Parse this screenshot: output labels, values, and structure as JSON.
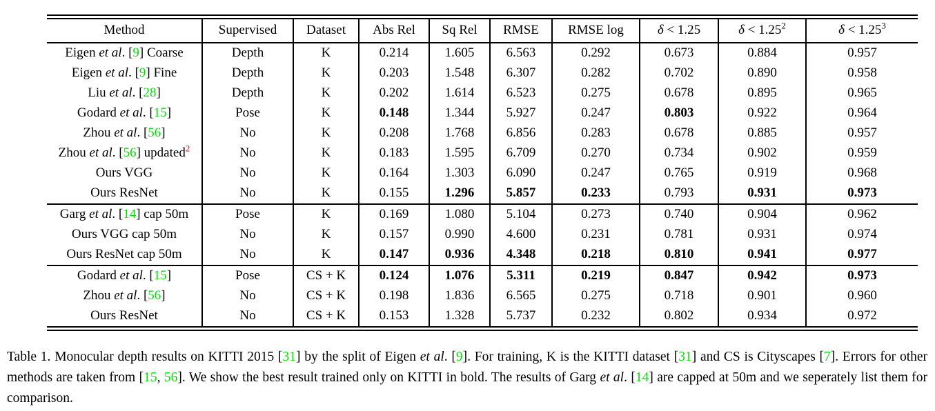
{
  "colors": {
    "citation_green": "#00e300",
    "footnote_red": "#fd0000",
    "text": "#000000"
  },
  "table": {
    "headers": [
      {
        "segs": [
          {
            "t": "Method"
          }
        ]
      },
      {
        "segs": [
          {
            "t": "Supervised"
          }
        ]
      },
      {
        "segs": [
          {
            "t": "Dataset"
          }
        ]
      },
      {
        "segs": [
          {
            "t": "Abs Rel"
          }
        ]
      },
      {
        "segs": [
          {
            "t": "Sq Rel"
          }
        ]
      },
      {
        "segs": [
          {
            "t": "RMSE"
          }
        ]
      },
      {
        "segs": [
          {
            "t": "RMSE log"
          }
        ]
      },
      {
        "segs": [
          {
            "t": "δ",
            "i": 1
          },
          {
            "t": " < 1.25"
          }
        ]
      },
      {
        "segs": [
          {
            "t": "δ",
            "i": 1
          },
          {
            "t": " < 1.25"
          },
          {
            "t": "2",
            "sup": 1
          }
        ]
      },
      {
        "segs": [
          {
            "t": "δ",
            "i": 1
          },
          {
            "t": " < 1.25"
          },
          {
            "t": "3",
            "sup": 1
          }
        ]
      }
    ],
    "sections": [
      {
        "rows": [
          {
            "method": [
              {
                "t": "Eigen "
              },
              {
                "t": "et al",
                "i": 1
              },
              {
                "t": ". ["
              },
              {
                "t": "9",
                "g": 1
              },
              {
                "t": "] Coarse"
              }
            ],
            "supervised": "Depth",
            "dataset": "K",
            "values": [
              {
                "v": "0.214"
              },
              {
                "v": "1.605"
              },
              {
                "v": "6.563"
              },
              {
                "v": "0.292"
              },
              {
                "v": "0.673"
              },
              {
                "v": "0.884"
              },
              {
                "v": "0.957"
              }
            ]
          },
          {
            "method": [
              {
                "t": "Eigen "
              },
              {
                "t": "et al",
                "i": 1
              },
              {
                "t": ". ["
              },
              {
                "t": "9",
                "g": 1
              },
              {
                "t": "] Fine"
              }
            ],
            "supervised": "Depth",
            "dataset": "K",
            "values": [
              {
                "v": "0.203"
              },
              {
                "v": "1.548"
              },
              {
                "v": "6.307"
              },
              {
                "v": "0.282"
              },
              {
                "v": "0.702"
              },
              {
                "v": "0.890"
              },
              {
                "v": "0.958"
              }
            ]
          },
          {
            "method": [
              {
                "t": "Liu "
              },
              {
                "t": "et al",
                "i": 1
              },
              {
                "t": ". ["
              },
              {
                "t": "28",
                "g": 1
              },
              {
                "t": "]"
              }
            ],
            "supervised": "Depth",
            "dataset": "K",
            "values": [
              {
                "v": "0.202"
              },
              {
                "v": "1.614"
              },
              {
                "v": "6.523"
              },
              {
                "v": "0.275"
              },
              {
                "v": "0.678"
              },
              {
                "v": "0.895"
              },
              {
                "v": "0.965"
              }
            ]
          },
          {
            "method": [
              {
                "t": "Godard "
              },
              {
                "t": "et al",
                "i": 1
              },
              {
                "t": ". ["
              },
              {
                "t": "15",
                "g": 1
              },
              {
                "t": "]"
              }
            ],
            "supervised": "Pose",
            "dataset": "K",
            "values": [
              {
                "v": "0.148",
                "b": 1
              },
              {
                "v": "1.344"
              },
              {
                "v": "5.927"
              },
              {
                "v": "0.247"
              },
              {
                "v": "0.803",
                "b": 1
              },
              {
                "v": "0.922"
              },
              {
                "v": "0.964"
              }
            ]
          },
          {
            "method": [
              {
                "t": "Zhou "
              },
              {
                "t": "et al",
                "i": 1
              },
              {
                "t": ". ["
              },
              {
                "t": "56",
                "g": 1
              },
              {
                "t": "]"
              }
            ],
            "supervised": "No",
            "dataset": "K",
            "values": [
              {
                "v": "0.208"
              },
              {
                "v": "1.768"
              },
              {
                "v": "6.856"
              },
              {
                "v": "0.283"
              },
              {
                "v": "0.678"
              },
              {
                "v": "0.885"
              },
              {
                "v": "0.957"
              }
            ]
          },
          {
            "method": [
              {
                "t": "Zhou "
              },
              {
                "t": "et al",
                "i": 1
              },
              {
                "t": ". ["
              },
              {
                "t": "56",
                "g": 1
              },
              {
                "t": "] updated"
              },
              {
                "t": "2",
                "sup": 1,
                "r": 1
              }
            ],
            "supervised": "No",
            "dataset": "K",
            "values": [
              {
                "v": "0.183"
              },
              {
                "v": "1.595"
              },
              {
                "v": "6.709"
              },
              {
                "v": "0.270"
              },
              {
                "v": "0.734"
              },
              {
                "v": "0.902"
              },
              {
                "v": "0.959"
              }
            ]
          },
          {
            "method": [
              {
                "t": "Ours VGG"
              }
            ],
            "supervised": "No",
            "dataset": "K",
            "values": [
              {
                "v": "0.164"
              },
              {
                "v": "1.303"
              },
              {
                "v": "6.090"
              },
              {
                "v": "0.247"
              },
              {
                "v": "0.765"
              },
              {
                "v": "0.919"
              },
              {
                "v": "0.968"
              }
            ]
          },
          {
            "method": [
              {
                "t": "Ours ResNet"
              }
            ],
            "supervised": "No",
            "dataset": "K",
            "values": [
              {
                "v": "0.155"
              },
              {
                "v": "1.296",
                "b": 1
              },
              {
                "v": "5.857",
                "b": 1
              },
              {
                "v": "0.233",
                "b": 1
              },
              {
                "v": "0.793"
              },
              {
                "v": "0.931",
                "b": 1
              },
              {
                "v": "0.973",
                "b": 1
              }
            ]
          }
        ]
      },
      {
        "rows": [
          {
            "method": [
              {
                "t": "Garg "
              },
              {
                "t": "et al",
                "i": 1
              },
              {
                "t": ". ["
              },
              {
                "t": "14",
                "g": 1
              },
              {
                "t": "] cap 50m"
              }
            ],
            "supervised": "Pose",
            "dataset": "K",
            "values": [
              {
                "v": "0.169"
              },
              {
                "v": "1.080"
              },
              {
                "v": "5.104"
              },
              {
                "v": "0.273"
              },
              {
                "v": "0.740"
              },
              {
                "v": "0.904"
              },
              {
                "v": "0.962"
              }
            ]
          },
          {
            "method": [
              {
                "t": "Ours VGG cap 50m"
              }
            ],
            "supervised": "No",
            "dataset": "K",
            "values": [
              {
                "v": "0.157"
              },
              {
                "v": "0.990"
              },
              {
                "v": "4.600"
              },
              {
                "v": "0.231"
              },
              {
                "v": "0.781"
              },
              {
                "v": "0.931"
              },
              {
                "v": "0.974"
              }
            ]
          },
          {
            "method": [
              {
                "t": "Ours ResNet cap 50m"
              }
            ],
            "supervised": "No",
            "dataset": "K",
            "values": [
              {
                "v": "0.147",
                "b": 1
              },
              {
                "v": "0.936",
                "b": 1
              },
              {
                "v": "4.348",
                "b": 1
              },
              {
                "v": "0.218",
                "b": 1
              },
              {
                "v": "0.810",
                "b": 1
              },
              {
                "v": "0.941",
                "b": 1
              },
              {
                "v": "0.977",
                "b": 1
              }
            ]
          }
        ]
      },
      {
        "rows": [
          {
            "method": [
              {
                "t": "Godard "
              },
              {
                "t": "et al",
                "i": 1
              },
              {
                "t": ". ["
              },
              {
                "t": "15",
                "g": 1
              },
              {
                "t": "]"
              }
            ],
            "supervised": "Pose",
            "dataset": "CS + K",
            "values": [
              {
                "v": "0.124",
                "b": 1
              },
              {
                "v": "1.076",
                "b": 1
              },
              {
                "v": "5.311",
                "b": 1
              },
              {
                "v": "0.219",
                "b": 1
              },
              {
                "v": "0.847",
                "b": 1
              },
              {
                "v": "0.942",
                "b": 1
              },
              {
                "v": "0.973",
                "b": 1
              }
            ]
          },
          {
            "method": [
              {
                "t": "Zhou "
              },
              {
                "t": "et al",
                "i": 1
              },
              {
                "t": ". ["
              },
              {
                "t": "56",
                "g": 1
              },
              {
                "t": "]"
              }
            ],
            "supervised": "No",
            "dataset": "CS + K",
            "values": [
              {
                "v": "0.198"
              },
              {
                "v": "1.836"
              },
              {
                "v": "6.565"
              },
              {
                "v": "0.275"
              },
              {
                "v": "0.718"
              },
              {
                "v": "0.901"
              },
              {
                "v": "0.960"
              }
            ]
          },
          {
            "method": [
              {
                "t": "Ours ResNet"
              }
            ],
            "supervised": "No",
            "dataset": "CS + K",
            "values": [
              {
                "v": "0.153"
              },
              {
                "v": "1.328"
              },
              {
                "v": "5.737"
              },
              {
                "v": "0.232"
              },
              {
                "v": "0.802"
              },
              {
                "v": "0.934"
              },
              {
                "v": "0.972"
              }
            ]
          }
        ]
      }
    ]
  },
  "caption": {
    "segs": [
      {
        "t": "Table 1. Monocular depth results on KITTI 2015 ["
      },
      {
        "t": "31",
        "g": 1
      },
      {
        "t": "] by the split of Eigen "
      },
      {
        "t": "et al",
        "i": 1
      },
      {
        "t": ". ["
      },
      {
        "t": "9",
        "g": 1
      },
      {
        "t": "]. For training, K is the KITTI dataset ["
      },
      {
        "t": "31",
        "g": 1
      },
      {
        "t": "] and CS is Cityscapes ["
      },
      {
        "t": "7",
        "g": 1
      },
      {
        "t": "]. Errors for other methods are taken from ["
      },
      {
        "t": "15",
        "g": 1
      },
      {
        "t": ", "
      },
      {
        "t": "56",
        "g": 1
      },
      {
        "t": "]. We show the best result trained only on KITTI in bold. The results of Garg "
      },
      {
        "t": "et al",
        "i": 1
      },
      {
        "t": ". ["
      },
      {
        "t": "14",
        "g": 1
      },
      {
        "t": "] are capped at 50m and we seperately list them for comparison."
      }
    ]
  }
}
